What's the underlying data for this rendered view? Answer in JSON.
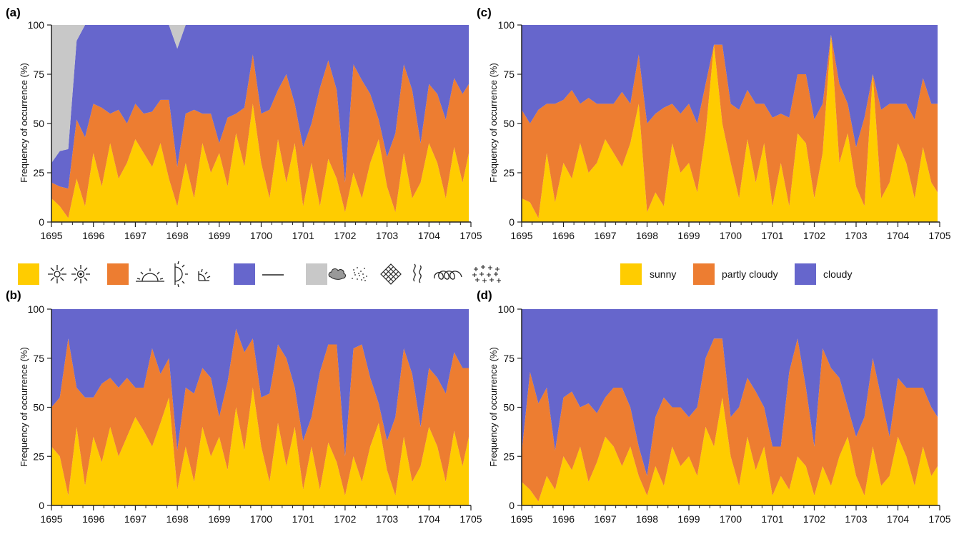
{
  "colors": {
    "sunny": "#ffcc00",
    "partly_cloudy": "#ed7d31",
    "cloudy": "#6666cc",
    "grey": "#c8c8c8"
  },
  "legend_left": {
    "groups": [
      {
        "color_key": "sunny",
        "icons": [
          "sun-rays-icon",
          "sun-dot-rays-icon"
        ]
      },
      {
        "color_key": "partly_cloudy",
        "icons": [
          "half-sun-horizon-icon",
          "half-sun-vertical-icon",
          "quarter-sun-icon"
        ]
      },
      {
        "color_key": "cloudy",
        "icons": [
          "dash-line-icon"
        ]
      },
      {
        "color_key": "grey",
        "icons": [
          "cloud-blob-icon",
          "dotted-scatter-icon",
          "lattice-icon",
          "wavy-lines-icon",
          "loops-icon",
          "crosses-cluster-icon"
        ]
      }
    ]
  },
  "legend_right": {
    "items": [
      {
        "label": "sunny",
        "color_key": "sunny"
      },
      {
        "label": "partly cloudy",
        "color_key": "partly_cloudy"
      },
      {
        "label": "cloudy",
        "color_key": "cloudy"
      }
    ]
  },
  "chart_data": [
    {
      "panel": "(a)",
      "type": "area",
      "stacked": true,
      "ylabel": "Frequency of occurrence (%)",
      "xlim": [
        1695,
        1705
      ],
      "ylim": [
        0,
        100
      ],
      "xticks": [
        "1695",
        "1696",
        "1697",
        "1698",
        "1699",
        "1700",
        "1701",
        "1702",
        "1703",
        "1704",
        "1705"
      ],
      "yticks": [
        "0",
        "25",
        "50",
        "75",
        "100"
      ],
      "x": [
        1695.0,
        1695.2,
        1695.4,
        1695.6,
        1695.8,
        1696.0,
        1696.2,
        1696.4,
        1696.6,
        1696.8,
        1697.0,
        1697.2,
        1697.4,
        1697.6,
        1697.8,
        1698.0,
        1698.2,
        1698.4,
        1698.6,
        1698.8,
        1699.0,
        1699.2,
        1699.4,
        1699.6,
        1699.8,
        1700.0,
        1700.2,
        1700.4,
        1700.6,
        1700.8,
        1701.0,
        1701.2,
        1701.4,
        1701.6,
        1701.8,
        1702.0,
        1702.2,
        1702.4,
        1702.6,
        1702.8,
        1703.0,
        1703.2,
        1703.4,
        1703.6,
        1703.8,
        1704.0,
        1704.2,
        1704.4,
        1704.6,
        1704.8,
        1704.95
      ],
      "series": [
        {
          "name": "sunny",
          "color_key": "sunny",
          "values": [
            12,
            8,
            2,
            22,
            8,
            35,
            18,
            40,
            22,
            30,
            42,
            35,
            28,
            40,
            22,
            8,
            30,
            12,
            40,
            25,
            35,
            18,
            45,
            28,
            60,
            30,
            12,
            42,
            20,
            40,
            8,
            30,
            8,
            32,
            22,
            5,
            25,
            12,
            30,
            42,
            18,
            5,
            35,
            12,
            20,
            40,
            30,
            12,
            38,
            20,
            35
          ]
        },
        {
          "name": "partly cloudy",
          "color_key": "partly_cloudy",
          "values": [
            8,
            10,
            15,
            30,
            35,
            25,
            40,
            15,
            35,
            20,
            18,
            20,
            28,
            22,
            40,
            20,
            25,
            45,
            15,
            30,
            5,
            35,
            10,
            30,
            25,
            25,
            45,
            25,
            55,
            20,
            30,
            20,
            60,
            50,
            45,
            15,
            55,
            60,
            35,
            10,
            15,
            40,
            45,
            55,
            20,
            30,
            35,
            40,
            35,
            45,
            35
          ]
        },
        {
          "name": "cloudy",
          "color_key": "cloudy",
          "values": [
            10,
            18,
            20,
            40,
            57,
            40,
            42,
            45,
            43,
            50,
            40,
            45,
            44,
            38,
            38,
            60,
            45,
            43,
            45,
            45,
            60,
            47,
            45,
            42,
            15,
            45,
            43,
            33,
            25,
            40,
            62,
            50,
            32,
            18,
            33,
            80,
            20,
            28,
            35,
            48,
            67,
            55,
            20,
            33,
            60,
            30,
            35,
            48,
            27,
            35,
            30
          ]
        },
        {
          "name": "grey",
          "color_key": "grey",
          "values": [
            70,
            64,
            63,
            8,
            0,
            0,
            0,
            0,
            0,
            0,
            0,
            0,
            0,
            0,
            0,
            12,
            0,
            0,
            0,
            5,
            0,
            0,
            0,
            0,
            0,
            0,
            0,
            0,
            0,
            0,
            0,
            0,
            0,
            0,
            0,
            0,
            0,
            0,
            0,
            0,
            0,
            0,
            0,
            0,
            0,
            0,
            0,
            0,
            0,
            0,
            0
          ]
        }
      ]
    },
    {
      "panel": "(b)",
      "type": "area",
      "stacked": true,
      "ylabel": "Frequency of occurrence (%)",
      "xlim": [
        1695,
        1705
      ],
      "ylim": [
        0,
        100
      ],
      "xticks": [
        "1695",
        "1696",
        "1697",
        "1698",
        "1699",
        "1700",
        "1701",
        "1702",
        "1703",
        "1704",
        "1705"
      ],
      "yticks": [
        "0",
        "25",
        "50",
        "75",
        "100"
      ],
      "x": [
        1695.0,
        1695.2,
        1695.4,
        1695.6,
        1695.8,
        1696.0,
        1696.2,
        1696.4,
        1696.6,
        1696.8,
        1697.0,
        1697.2,
        1697.4,
        1697.6,
        1697.8,
        1698.0,
        1698.2,
        1698.4,
        1698.6,
        1698.8,
        1699.0,
        1699.2,
        1699.4,
        1699.6,
        1699.8,
        1700.0,
        1700.2,
        1700.4,
        1700.6,
        1700.8,
        1701.0,
        1701.2,
        1701.4,
        1701.6,
        1701.8,
        1702.0,
        1702.2,
        1702.4,
        1702.6,
        1702.8,
        1703.0,
        1703.2,
        1703.4,
        1703.6,
        1703.8,
        1704.0,
        1704.2,
        1704.4,
        1704.6,
        1704.8,
        1704.95
      ],
      "series": [
        {
          "name": "sunny",
          "color_key": "sunny",
          "values": [
            30,
            25,
            5,
            40,
            10,
            35,
            22,
            40,
            25,
            35,
            45,
            38,
            30,
            42,
            55,
            8,
            30,
            12,
            40,
            25,
            35,
            18,
            50,
            28,
            60,
            30,
            12,
            42,
            20,
            40,
            8,
            30,
            8,
            32,
            22,
            5,
            25,
            12,
            30,
            42,
            18,
            5,
            35,
            12,
            20,
            40,
            30,
            12,
            38,
            20,
            35
          ]
        },
        {
          "name": "partly cloudy",
          "color_key": "partly_cloudy",
          "values": [
            20,
            30,
            80,
            20,
            45,
            20,
            40,
            25,
            35,
            30,
            15,
            22,
            50,
            25,
            20,
            20,
            30,
            45,
            30,
            40,
            10,
            45,
            40,
            50,
            25,
            25,
            45,
            40,
            55,
            20,
            25,
            15,
            60,
            50,
            60,
            20,
            55,
            70,
            35,
            10,
            15,
            40,
            45,
            55,
            20,
            30,
            35,
            45,
            40,
            50,
            35
          ]
        },
        {
          "name": "cloudy",
          "color_key": "cloudy",
          "values": [
            50,
            45,
            15,
            40,
            45,
            45,
            38,
            35,
            40,
            35,
            40,
            40,
            20,
            33,
            25,
            72,
            40,
            43,
            30,
            35,
            55,
            37,
            10,
            22,
            15,
            45,
            43,
            18,
            25,
            40,
            67,
            55,
            32,
            18,
            18,
            75,
            20,
            18,
            35,
            48,
            67,
            55,
            20,
            33,
            60,
            30,
            35,
            43,
            22,
            30,
            30
          ]
        }
      ]
    },
    {
      "panel": "(c)",
      "type": "area",
      "stacked": true,
      "ylabel": "Frequency of occurrence (%)",
      "xlim": [
        1695,
        1705
      ],
      "ylim": [
        0,
        100
      ],
      "xticks": [
        "1695",
        "1696",
        "1697",
        "1698",
        "1699",
        "1700",
        "1701",
        "1702",
        "1703",
        "1704",
        "1705"
      ],
      "yticks": [
        "0",
        "25",
        "50",
        "75",
        "100"
      ],
      "x": [
        1695.0,
        1695.2,
        1695.4,
        1695.6,
        1695.8,
        1696.0,
        1696.2,
        1696.4,
        1696.6,
        1696.8,
        1697.0,
        1697.2,
        1697.4,
        1697.6,
        1697.8,
        1698.0,
        1698.2,
        1698.4,
        1698.6,
        1698.8,
        1699.0,
        1699.2,
        1699.4,
        1699.6,
        1699.8,
        1700.0,
        1700.2,
        1700.4,
        1700.6,
        1700.8,
        1701.0,
        1701.2,
        1701.4,
        1701.6,
        1701.8,
        1702.0,
        1702.2,
        1702.4,
        1702.6,
        1702.8,
        1703.0,
        1703.2,
        1703.4,
        1703.6,
        1703.8,
        1704.0,
        1704.2,
        1704.4,
        1704.6,
        1704.8,
        1704.95
      ],
      "series": [
        {
          "name": "sunny",
          "color_key": "sunny",
          "values": [
            12,
            10,
            2,
            35,
            10,
            30,
            22,
            40,
            25,
            30,
            42,
            35,
            28,
            40,
            60,
            5,
            15,
            8,
            40,
            25,
            30,
            15,
            45,
            90,
            50,
            30,
            12,
            42,
            20,
            40,
            8,
            30,
            8,
            45,
            40,
            12,
            35,
            95,
            30,
            45,
            18,
            8,
            75,
            12,
            20,
            40,
            30,
            12,
            38,
            20,
            15
          ]
        },
        {
          "name": "partly cloudy",
          "color_key": "partly_cloudy",
          "values": [
            45,
            40,
            55,
            25,
            50,
            32,
            45,
            20,
            38,
            30,
            18,
            25,
            38,
            20,
            25,
            45,
            40,
            50,
            20,
            30,
            30,
            35,
            25,
            0,
            40,
            30,
            45,
            25,
            40,
            20,
            45,
            25,
            45,
            30,
            35,
            40,
            25,
            0,
            40,
            15,
            20,
            45,
            0,
            45,
            40,
            20,
            30,
            40,
            35,
            40,
            45
          ]
        },
        {
          "name": "cloudy",
          "color_key": "cloudy",
          "values": [
            43,
            50,
            43,
            40,
            40,
            38,
            33,
            40,
            37,
            40,
            40,
            40,
            34,
            40,
            15,
            50,
            45,
            42,
            40,
            45,
            40,
            50,
            30,
            10,
            10,
            40,
            43,
            33,
            40,
            40,
            47,
            45,
            47,
            25,
            25,
            48,
            40,
            5,
            30,
            40,
            62,
            47,
            25,
            43,
            40,
            40,
            40,
            48,
            27,
            40,
            40
          ]
        }
      ]
    },
    {
      "panel": "(d)",
      "type": "area",
      "stacked": true,
      "ylabel": "Frequency of occurrence (%)",
      "xlim": [
        1695,
        1705
      ],
      "ylim": [
        0,
        100
      ],
      "xticks": [
        "1695",
        "1696",
        "1697",
        "1698",
        "1699",
        "1700",
        "1701",
        "1702",
        "1703",
        "1704",
        "1705"
      ],
      "yticks": [
        "0",
        "25",
        "50",
        "75",
        "100"
      ],
      "x": [
        1695.0,
        1695.2,
        1695.4,
        1695.6,
        1695.8,
        1696.0,
        1696.2,
        1696.4,
        1696.6,
        1696.8,
        1697.0,
        1697.2,
        1697.4,
        1697.6,
        1697.8,
        1698.0,
        1698.2,
        1698.4,
        1698.6,
        1698.8,
        1699.0,
        1699.2,
        1699.4,
        1699.6,
        1699.8,
        1700.0,
        1700.2,
        1700.4,
        1700.6,
        1700.8,
        1701.0,
        1701.2,
        1701.4,
        1701.6,
        1701.8,
        1702.0,
        1702.2,
        1702.4,
        1702.6,
        1702.8,
        1703.0,
        1703.2,
        1703.4,
        1703.6,
        1703.8,
        1704.0,
        1704.2,
        1704.4,
        1704.6,
        1704.8,
        1704.95
      ],
      "series": [
        {
          "name": "sunny",
          "color_key": "sunny",
          "values": [
            12,
            8,
            2,
            15,
            8,
            25,
            18,
            30,
            12,
            22,
            35,
            30,
            20,
            30,
            15,
            5,
            20,
            10,
            30,
            20,
            25,
            15,
            40,
            30,
            55,
            25,
            10,
            35,
            18,
            30,
            5,
            15,
            8,
            25,
            20,
            5,
            20,
            10,
            25,
            35,
            15,
            5,
            30,
            10,
            15,
            35,
            25,
            10,
            30,
            15,
            20
          ]
        },
        {
          "name": "partly cloudy",
          "color_key": "partly_cloudy",
          "values": [
            15,
            60,
            50,
            45,
            20,
            30,
            40,
            20,
            40,
            25,
            20,
            30,
            40,
            20,
            15,
            10,
            25,
            45,
            20,
            30,
            20,
            35,
            35,
            55,
            30,
            20,
            40,
            30,
            40,
            20,
            25,
            15,
            60,
            60,
            40,
            25,
            60,
            60,
            40,
            15,
            20,
            40,
            45,
            45,
            20,
            30,
            35,
            50,
            30,
            35,
            25
          ]
        },
        {
          "name": "cloudy",
          "color_key": "cloudy",
          "values": [
            73,
            32,
            48,
            40,
            72,
            45,
            42,
            50,
            48,
            53,
            45,
            40,
            40,
            50,
            70,
            85,
            55,
            45,
            50,
            50,
            55,
            50,
            25,
            15,
            15,
            55,
            50,
            35,
            42,
            50,
            70,
            70,
            32,
            15,
            40,
            70,
            20,
            30,
            35,
            50,
            65,
            55,
            25,
            45,
            65,
            35,
            40,
            40,
            40,
            50,
            55
          ]
        }
      ]
    }
  ]
}
